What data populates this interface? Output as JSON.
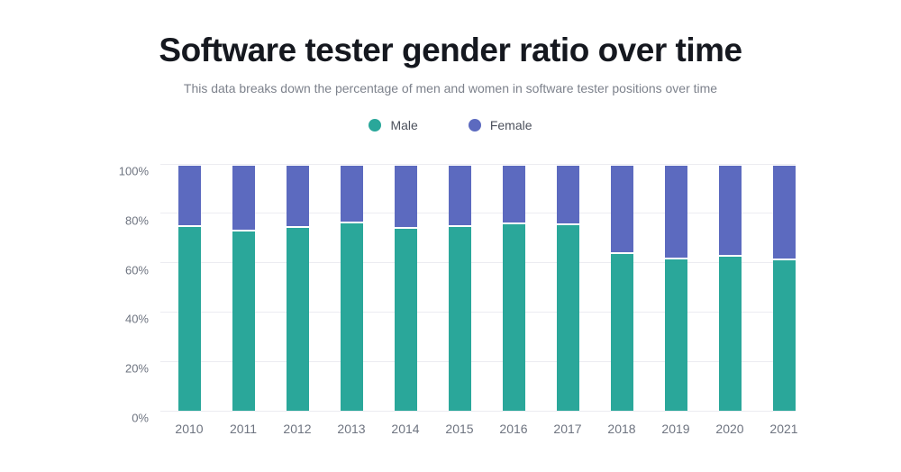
{
  "header": {
    "title": "Software tester gender ratio over time",
    "subtitle": "This data breaks down the percentage of men and women in software tester positions over time"
  },
  "colors": {
    "male": "#2aa79a",
    "female": "#5c6abf",
    "title_text": "#15181f",
    "subtitle_text": "#7d828c",
    "axis_text": "#6e7480",
    "gridline": "#ececf1",
    "background": "#ffffff"
  },
  "chart_data": {
    "type": "bar",
    "stacked": true,
    "title": "Software tester gender ratio over time",
    "subtitle": "This data breaks down the percentage of men and women in software tester positions over time",
    "xlabel": "",
    "ylabel": "",
    "categories": [
      "2010",
      "2011",
      "2012",
      "2013",
      "2014",
      "2015",
      "2016",
      "2017",
      "2018",
      "2019",
      "2020",
      "2021"
    ],
    "series": [
      {
        "name": "Male",
        "color": "#2aa79a",
        "values": [
          75.0,
          73.0,
          74.8,
          76.4,
          74.4,
          74.9,
          76.1,
          75.6,
          64.0,
          61.9,
          63.1,
          61.6
        ]
      },
      {
        "name": "Female",
        "color": "#5c6abf",
        "values": [
          25.0,
          27.0,
          25.2,
          23.6,
          25.6,
          25.1,
          23.9,
          24.4,
          36.0,
          38.1,
          36.9,
          38.4
        ]
      }
    ],
    "ylim": [
      0,
      100
    ],
    "yticks_values": [
      0,
      20,
      40,
      60,
      80,
      100
    ],
    "yticks_labels": [
      "0%",
      "20%",
      "40%",
      "60%",
      "80%",
      "100%"
    ],
    "grid": true,
    "legend_position": "top",
    "value_unit": "%"
  }
}
